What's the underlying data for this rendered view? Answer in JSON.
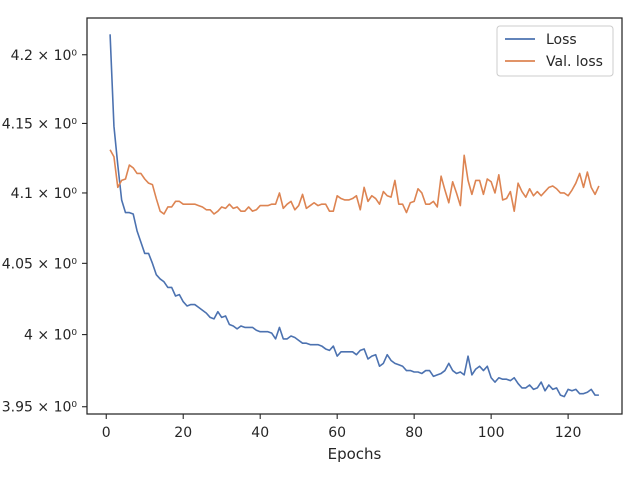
{
  "chart_data": {
    "type": "line",
    "title": "",
    "xlabel": "Epochs",
    "ylabel": "",
    "xlim": [
      -5,
      134
    ],
    "ylim": [
      3.945,
      4.227
    ],
    "yscale": "log",
    "grid": false,
    "legend_position": "top-right",
    "x_ticks": [
      {
        "value": 0,
        "label": "0"
      },
      {
        "value": 20,
        "label": "20"
      },
      {
        "value": 40,
        "label": "40"
      },
      {
        "value": 60,
        "label": "60"
      },
      {
        "value": 80,
        "label": "80"
      },
      {
        "value": 100,
        "label": "100"
      },
      {
        "value": 120,
        "label": "120"
      }
    ],
    "y_ticks": [
      {
        "value": 3.95,
        "label": "3.95 × 10⁰"
      },
      {
        "value": 4.0,
        "label": "4 × 10⁰"
      },
      {
        "value": 4.05,
        "label": "4.05 × 10⁰"
      },
      {
        "value": 4.1,
        "label": "4.1 × 10⁰"
      },
      {
        "value": 4.15,
        "label": "4.15 × 10⁰"
      },
      {
        "value": 4.2,
        "label": "4.2 × 10⁰"
      }
    ],
    "series": [
      {
        "name": "Loss",
        "color": "#4c72b0",
        "x": [
          1,
          2,
          3,
          4,
          5,
          6,
          7,
          8,
          9,
          10,
          11,
          12,
          13,
          14,
          15,
          16,
          17,
          18,
          19,
          20,
          21,
          22,
          23,
          24,
          25,
          26,
          27,
          28,
          29,
          30,
          31,
          32,
          33,
          34,
          35,
          36,
          37,
          38,
          39,
          40,
          41,
          42,
          43,
          44,
          45,
          46,
          47,
          48,
          49,
          50,
          51,
          52,
          53,
          54,
          55,
          56,
          57,
          58,
          59,
          60,
          61,
          62,
          63,
          64,
          65,
          66,
          67,
          68,
          69,
          70,
          71,
          72,
          73,
          74,
          75,
          76,
          77,
          78,
          79,
          80,
          81,
          82,
          83,
          84,
          85,
          86,
          87,
          88,
          89,
          90,
          91,
          92,
          93,
          94,
          95,
          96,
          97,
          98,
          99,
          100,
          101,
          102,
          103,
          104,
          105,
          106,
          107,
          108,
          109,
          110,
          111,
          112,
          113,
          114,
          115,
          116,
          117,
          118,
          119,
          120,
          121,
          122,
          123,
          124,
          125,
          126,
          127,
          128
        ],
        "values": [
          4.215,
          4.148,
          4.12,
          4.095,
          4.086,
          4.086,
          4.085,
          4.073,
          4.065,
          4.057,
          4.057,
          4.05,
          4.042,
          4.039,
          4.037,
          4.033,
          4.033,
          4.027,
          4.028,
          4.023,
          4.02,
          4.021,
          4.021,
          4.019,
          4.017,
          4.015,
          4.012,
          4.011,
          4.016,
          4.012,
          4.013,
          4.007,
          4.006,
          4.004,
          4.006,
          4.005,
          4.005,
          4.005,
          4.003,
          4.002,
          4.002,
          4.002,
          4.001,
          3.997,
          4.005,
          3.997,
          3.997,
          3.999,
          3.998,
          3.996,
          3.994,
          3.994,
          3.993,
          3.993,
          3.993,
          3.992,
          3.99,
          3.989,
          3.992,
          3.985,
          3.988,
          3.988,
          3.988,
          3.988,
          3.986,
          3.989,
          3.99,
          3.983,
          3.985,
          3.986,
          3.978,
          3.98,
          3.986,
          3.982,
          3.98,
          3.979,
          3.978,
          3.975,
          3.975,
          3.974,
          3.974,
          3.973,
          3.975,
          3.975,
          3.971,
          3.972,
          3.973,
          3.975,
          3.98,
          3.975,
          3.973,
          3.974,
          3.972,
          3.985,
          3.972,
          3.976,
          3.978,
          3.975,
          3.978,
          3.97,
          3.967,
          3.97,
          3.969,
          3.969,
          3.968,
          3.97,
          3.966,
          3.963,
          3.963,
          3.965,
          3.962,
          3.963,
          3.967,
          3.961,
          3.965,
          3.962,
          3.963,
          3.958,
          3.957,
          3.962,
          3.961,
          3.962,
          3.959,
          3.959,
          3.96,
          3.962,
          3.958,
          3.958
        ]
      },
      {
        "name": "Val. loss",
        "color": "#dd8452",
        "x": [
          1,
          2,
          3,
          4,
          5,
          6,
          7,
          8,
          9,
          10,
          11,
          12,
          13,
          14,
          15,
          16,
          17,
          18,
          19,
          20,
          21,
          22,
          23,
          24,
          25,
          26,
          27,
          28,
          29,
          30,
          31,
          32,
          33,
          34,
          35,
          36,
          37,
          38,
          39,
          40,
          41,
          42,
          43,
          44,
          45,
          46,
          47,
          48,
          49,
          50,
          51,
          52,
          53,
          54,
          55,
          56,
          57,
          58,
          59,
          60,
          61,
          62,
          63,
          64,
          65,
          66,
          67,
          68,
          69,
          70,
          71,
          72,
          73,
          74,
          75,
          76,
          77,
          78,
          79,
          80,
          81,
          82,
          83,
          84,
          85,
          86,
          87,
          88,
          89,
          90,
          91,
          92,
          93,
          94,
          95,
          96,
          97,
          98,
          99,
          100,
          101,
          102,
          103,
          104,
          105,
          106,
          107,
          108,
          109,
          110,
          111,
          112,
          113,
          114,
          115,
          116,
          117,
          118,
          119,
          120,
          121,
          122,
          123,
          124,
          125,
          126,
          127,
          128
        ],
        "values": [
          4.131,
          4.126,
          4.104,
          4.109,
          4.11,
          4.12,
          4.118,
          4.114,
          4.114,
          4.11,
          4.107,
          4.106,
          4.096,
          4.087,
          4.085,
          4.09,
          4.09,
          4.094,
          4.094,
          4.092,
          4.092,
          4.092,
          4.092,
          4.091,
          4.09,
          4.088,
          4.088,
          4.085,
          4.087,
          4.09,
          4.089,
          4.092,
          4.089,
          4.09,
          4.087,
          4.087,
          4.09,
          4.087,
          4.088,
          4.091,
          4.091,
          4.091,
          4.092,
          4.092,
          4.1,
          4.089,
          4.092,
          4.094,
          4.088,
          4.091,
          4.099,
          4.089,
          4.091,
          4.093,
          4.091,
          4.092,
          4.092,
          4.087,
          4.087,
          4.098,
          4.096,
          4.095,
          4.095,
          4.096,
          4.098,
          4.088,
          4.104,
          4.094,
          4.098,
          4.096,
          4.092,
          4.101,
          4.098,
          4.097,
          4.109,
          4.092,
          4.092,
          4.086,
          4.093,
          4.094,
          4.103,
          4.1,
          4.092,
          4.092,
          4.094,
          4.09,
          4.112,
          4.102,
          4.093,
          4.108,
          4.1,
          4.091,
          4.127,
          4.109,
          4.099,
          4.109,
          4.109,
          4.099,
          4.11,
          4.108,
          4.1,
          4.113,
          4.095,
          4.096,
          4.101,
          4.087,
          4.107,
          4.101,
          4.097,
          4.103,
          4.098,
          4.101,
          4.098,
          4.101,
          4.104,
          4.105,
          4.103,
          4.1,
          4.1,
          4.098,
          4.102,
          4.107,
          4.114,
          4.104,
          4.115,
          4.104,
          4.099,
          4.105
        ]
      }
    ]
  }
}
